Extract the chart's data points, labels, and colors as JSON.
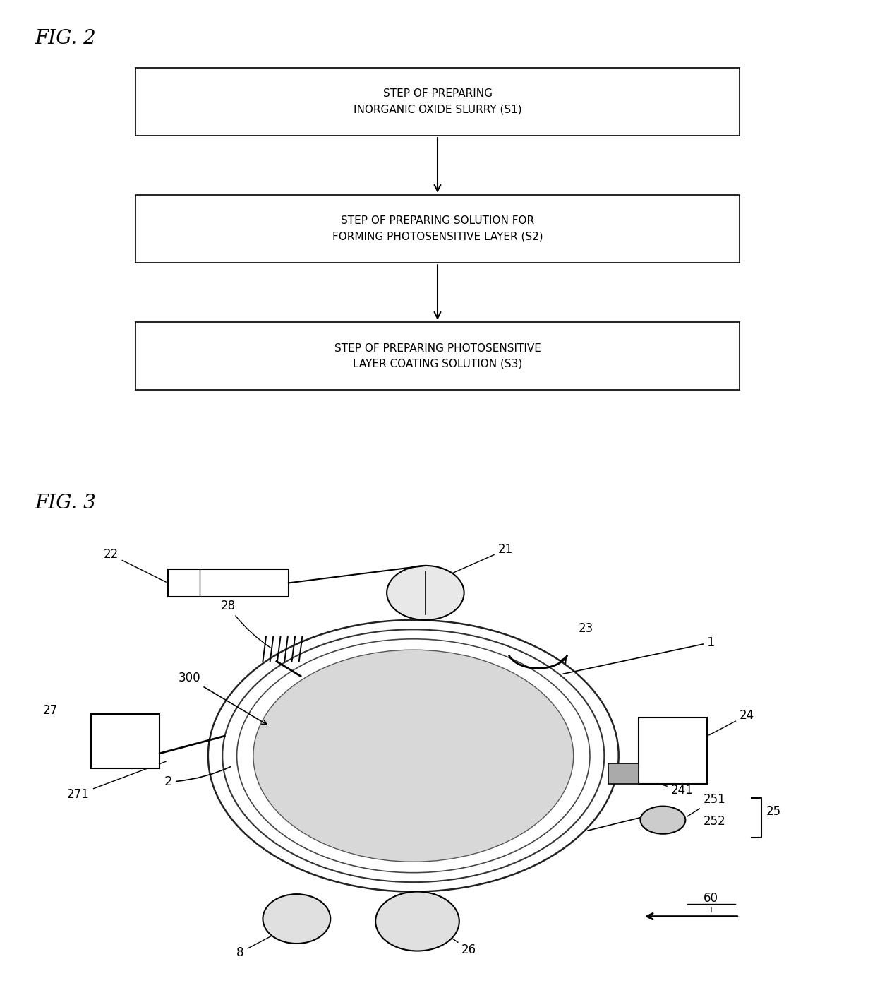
{
  "fig2_title": "FIG. 2",
  "fig3_title": "FIG. 3",
  "box1_text": "STEP OF PREPARING\nINORGANIC OXIDE SLURRY (S1)",
  "box2_text": "STEP OF PREPARING SOLUTION FOR\nFORMING PHOTOSENSITIVE LAYER (S2)",
  "box3_text": "STEP OF PREPARING PHOTOSENSITIVE\nLAYER COATING SOLUTION (S3)",
  "bg_color": "#ffffff",
  "box_color": "#ffffff",
  "box_edge_color": "#000000",
  "text_color": "#000000",
  "arrow_color": "#000000"
}
